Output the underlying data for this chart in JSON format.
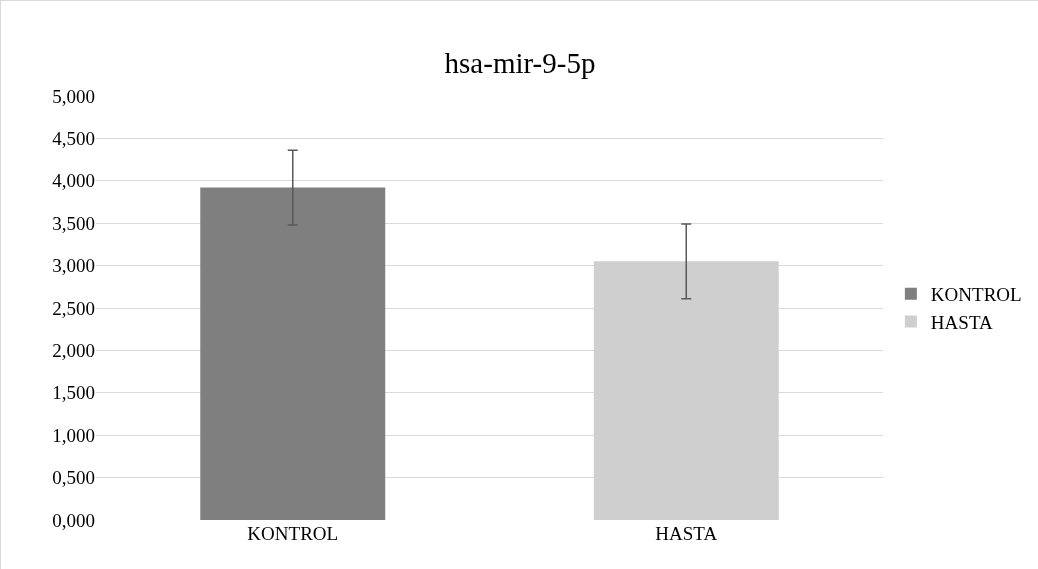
{
  "chart_data": {
    "type": "bar",
    "title": "hsa-mir-9-5p",
    "categories": [
      "KONTROL",
      "HASTA"
    ],
    "series": [
      {
        "name": "KONTROL",
        "color": "#7f7f7f",
        "values": [
          3.92,
          null
        ],
        "errors": [
          0.44,
          null
        ]
      },
      {
        "name": "HASTA",
        "color": "#d0cfd0",
        "values": [
          null,
          3.05
        ],
        "errors": [
          null,
          0.44
        ]
      }
    ],
    "ylim": [
      0,
      5
    ],
    "yticks": [
      {
        "value": 0,
        "label": "0,000"
      },
      {
        "value": 0.5,
        "label": "0,500"
      },
      {
        "value": 1,
        "label": "1,000"
      },
      {
        "value": 1.5,
        "label": "1,500"
      },
      {
        "value": 2,
        "label": "2,000"
      },
      {
        "value": 2.5,
        "label": "2,500"
      },
      {
        "value": 3,
        "label": "3,000"
      },
      {
        "value": 3.5,
        "label": "3,500"
      },
      {
        "value": 4,
        "label": "4,000"
      },
      {
        "value": 4.5,
        "label": "4,500"
      },
      {
        "value": 5,
        "label": "5,000"
      }
    ],
    "grid": "y",
    "legend": "right"
  }
}
